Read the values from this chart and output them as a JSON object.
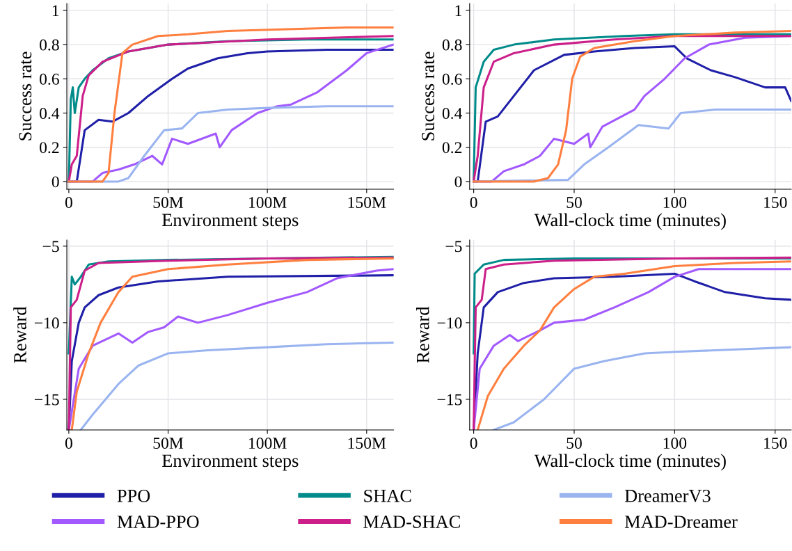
{
  "chart_data": [
    {
      "type": "line",
      "ylabel": "Success rate",
      "xlabel": "Environment steps",
      "xlim": [
        -1,
        163.6
      ],
      "ylim": [
        -0.045,
        1.04
      ],
      "xticks": [
        0,
        {
          "value": 50,
          "label": "50M"
        },
        {
          "value": 100,
          "label": "100M"
        },
        {
          "value": 150,
          "label": "150M"
        }
      ],
      "yticks": [
        0,
        0.2,
        0.4,
        0.6,
        0.8,
        1
      ],
      "grid": true,
      "legend": "bottom",
      "series": [
        {
          "name": "PPO",
          "color": "#1f1fa8",
          "x": [
            0,
            4,
            8,
            15,
            22,
            30,
            40,
            52,
            60,
            75,
            90,
            100,
            130,
            163.6
          ],
          "values": [
            0,
            0,
            0.3,
            0.36,
            0.35,
            0.4,
            0.5,
            0.6,
            0.66,
            0.72,
            0.75,
            0.76,
            0.77,
            0.77
          ]
        },
        {
          "name": "MAD-PPO",
          "color": "#a259ff",
          "x": [
            0,
            12,
            17,
            25,
            33,
            42,
            47,
            52,
            60,
            74,
            76,
            82,
            95,
            105,
            112,
            125,
            140,
            150,
            163.6
          ],
          "values": [
            0,
            0,
            0.05,
            0.07,
            0.1,
            0.15,
            0.1,
            0.25,
            0.22,
            0.28,
            0.2,
            0.3,
            0.4,
            0.44,
            0.45,
            0.52,
            0.65,
            0.75,
            0.8
          ]
        },
        {
          "name": "SHAC",
          "color": "#008b8b",
          "x": [
            0,
            1,
            2,
            3,
            5,
            8,
            12,
            20,
            30,
            50,
            80,
            120,
            163.6
          ],
          "values": [
            0,
            0.48,
            0.55,
            0.4,
            0.55,
            0.6,
            0.65,
            0.72,
            0.76,
            0.8,
            0.82,
            0.83,
            0.83
          ]
        },
        {
          "name": "MAD-SHAC",
          "color": "#cc1f8a",
          "x": [
            0,
            1.5,
            4,
            7,
            10,
            17,
            30,
            50,
            100,
            163.6
          ],
          "values": [
            0,
            0.1,
            0.15,
            0.5,
            0.62,
            0.7,
            0.76,
            0.8,
            0.83,
            0.85
          ]
        },
        {
          "name": "DreamerV3",
          "color": "#9ab4f0",
          "x": [
            0,
            25,
            30,
            38,
            48,
            57,
            65,
            80,
            100,
            130,
            163.6
          ],
          "values": [
            0,
            0,
            0.02,
            0.15,
            0.3,
            0.31,
            0.4,
            0.42,
            0.43,
            0.44,
            0.44
          ]
        },
        {
          "name": "MAD-Dreamer",
          "color": "#ff7f3f",
          "x": [
            0,
            17,
            20,
            23,
            27,
            32,
            45,
            60,
            80,
            110,
            140,
            163.6
          ],
          "values": [
            0,
            0,
            0.05,
            0.4,
            0.75,
            0.8,
            0.85,
            0.86,
            0.88,
            0.89,
            0.9,
            0.9
          ]
        }
      ]
    },
    {
      "type": "line",
      "ylabel": "Success rate",
      "xlabel": "Wall-clock time (minutes)",
      "xlim": [
        -2,
        158
      ],
      "ylim": [
        -0.045,
        1.04
      ],
      "xticks": [
        0,
        50,
        100,
        150
      ],
      "yticks": [
        0,
        0.2,
        0.4,
        0.6,
        0.8,
        1
      ],
      "grid": true,
      "series": [
        {
          "color": "#1f1fa8",
          "x": [
            0,
            2,
            6,
            12,
            20,
            30,
            45,
            60,
            80,
            100,
            106,
            118,
            130,
            145,
            155,
            158
          ],
          "values": [
            0,
            0,
            0.35,
            0.38,
            0.5,
            0.65,
            0.74,
            0.76,
            0.78,
            0.79,
            0.72,
            0.65,
            0.61,
            0.55,
            0.55,
            0.47
          ]
        },
        {
          "color": "#a259ff",
          "x": [
            0,
            9,
            15,
            25,
            33,
            40,
            50,
            57,
            58,
            64,
            80,
            85,
            95,
            105,
            117,
            135,
            158
          ],
          "values": [
            0,
            0,
            0.06,
            0.1,
            0.15,
            0.25,
            0.22,
            0.28,
            0.2,
            0.32,
            0.42,
            0.5,
            0.6,
            0.72,
            0.8,
            0.84,
            0.85
          ]
        },
        {
          "color": "#008b8b",
          "x": [
            0,
            1,
            5,
            10,
            20,
            40,
            75,
            100,
            158
          ],
          "values": [
            0,
            0.55,
            0.7,
            0.77,
            0.8,
            0.83,
            0.85,
            0.86,
            0.86
          ]
        },
        {
          "color": "#cc1f8a",
          "x": [
            0,
            2,
            5,
            10,
            20,
            40,
            70,
            100,
            158
          ],
          "values": [
            0,
            0.15,
            0.55,
            0.7,
            0.75,
            0.8,
            0.83,
            0.85,
            0.85
          ]
        },
        {
          "color": "#9ab4f0",
          "x": [
            0,
            47,
            55,
            67,
            82,
            97,
            103,
            120,
            158
          ],
          "values": [
            0,
            0.01,
            0.1,
            0.2,
            0.33,
            0.31,
            0.4,
            0.42,
            0.42
          ]
        },
        {
          "color": "#ff7f3f",
          "x": [
            0,
            30,
            37,
            42,
            46,
            49,
            53,
            60,
            80,
            100,
            130,
            158
          ],
          "values": [
            0,
            0,
            0.02,
            0.1,
            0.3,
            0.6,
            0.73,
            0.78,
            0.82,
            0.85,
            0.87,
            0.88
          ]
        }
      ]
    },
    {
      "type": "line",
      "ylabel": "Reward",
      "xlabel": "Environment steps",
      "xlim": [
        -1,
        163.6
      ],
      "ylim": [
        -17,
        -4.6
      ],
      "xticks": [
        0,
        {
          "value": 50,
          "label": "50M"
        },
        {
          "value": 100,
          "label": "100M"
        },
        {
          "value": 150,
          "label": "150M"
        }
      ],
      "yticks": [
        {
          "value": -5,
          "label": "−5"
        },
        {
          "value": -10,
          "label": "−10"
        },
        {
          "value": -15,
          "label": "−15"
        }
      ],
      "grid": true,
      "series": [
        {
          "color": "#1f1fa8",
          "x": [
            0,
            1.5,
            5,
            8,
            15,
            25,
            45,
            80,
            163.6
          ],
          "values": [
            -17,
            -12.5,
            -10,
            -9,
            -8.2,
            -7.7,
            -7.3,
            -7,
            -6.9
          ]
        },
        {
          "color": "#a259ff",
          "x": [
            0,
            5,
            12,
            25,
            32,
            40,
            48,
            55,
            65,
            80,
            100,
            120,
            135,
            155,
            163.6
          ],
          "values": [
            -17,
            -13,
            -11.5,
            -10.7,
            -11.3,
            -10.6,
            -10.3,
            -9.6,
            -10,
            -9.5,
            -8.7,
            -8,
            -7.1,
            -6.6,
            -6.5
          ]
        },
        {
          "color": "#008b8b",
          "x": [
            0,
            1.5,
            3,
            6,
            10,
            20,
            50,
            100,
            163.6
          ],
          "values": [
            -12,
            -7,
            -7.5,
            -7,
            -6.2,
            -6,
            -5.9,
            -5.8,
            -5.7
          ]
        },
        {
          "color": "#cc1f8a",
          "x": [
            0,
            1,
            4,
            8,
            15,
            50,
            100,
            163.6
          ],
          "values": [
            -17,
            -9,
            -8.5,
            -6.6,
            -6.1,
            -5.95,
            -5.8,
            -5.75
          ]
        },
        {
          "color": "#9ab4f0",
          "x": [
            6,
            12,
            25,
            35,
            50,
            70,
            100,
            130,
            163.6
          ],
          "values": [
            -17,
            -16,
            -14,
            -12.8,
            -12,
            -11.8,
            -11.6,
            -11.4,
            -11.3
          ]
        },
        {
          "color": "#ff7f3f",
          "x": [
            1.5,
            4,
            10,
            16,
            25,
            32,
            50,
            80,
            120,
            163.6
          ],
          "values": [
            -17,
            -14.5,
            -12,
            -10,
            -8,
            -7,
            -6.5,
            -6.2,
            -5.9,
            -5.8
          ]
        }
      ]
    },
    {
      "type": "line",
      "ylabel": "Reward",
      "xlabel": "Wall-clock time (minutes)",
      "xlim": [
        -2,
        158
      ],
      "ylim": [
        -17,
        -4.6
      ],
      "xticks": [
        0,
        50,
        100,
        150
      ],
      "yticks": [
        {
          "value": -5,
          "label": "−5"
        },
        {
          "value": -10,
          "label": "−10"
        },
        {
          "value": -15,
          "label": "−15"
        }
      ],
      "grid": true,
      "series": [
        {
          "color": "#1f1fa8",
          "x": [
            0,
            2,
            5,
            12,
            25,
            40,
            70,
            100,
            110,
            125,
            145,
            158
          ],
          "values": [
            -17,
            -12,
            -9,
            -8,
            -7.4,
            -7.1,
            -7,
            -6.8,
            -7.3,
            -8,
            -8.4,
            -8.5
          ]
        },
        {
          "color": "#a259ff",
          "x": [
            0,
            3,
            10,
            18,
            22,
            33,
            40,
            55,
            70,
            87,
            100,
            112,
            158
          ],
          "values": [
            -17,
            -13,
            -11.5,
            -10.8,
            -11.2,
            -10.5,
            -10,
            -9.8,
            -9,
            -8,
            -7,
            -6.5,
            -6.5
          ]
        },
        {
          "color": "#008b8b",
          "x": [
            0,
            0.5,
            5,
            15,
            50,
            158
          ],
          "values": [
            -12,
            -6.8,
            -6.2,
            -5.9,
            -5.8,
            -5.8
          ]
        },
        {
          "color": "#cc1f8a",
          "x": [
            0,
            1,
            4,
            6,
            15,
            40,
            100,
            158
          ],
          "values": [
            -17,
            -9,
            -8.5,
            -6.5,
            -6.2,
            -5.95,
            -5.8,
            -5.75
          ]
        },
        {
          "color": "#9ab4f0",
          "x": [
            10,
            20,
            35,
            50,
            65,
            85,
            100,
            120,
            158
          ],
          "values": [
            -17,
            -16.5,
            -15,
            -13,
            -12.5,
            -12,
            -11.9,
            -11.8,
            -11.6
          ]
        },
        {
          "color": "#ff7f3f",
          "x": [
            2,
            7,
            15,
            25,
            33,
            40,
            50,
            60,
            75,
            100,
            130,
            158
          ],
          "values": [
            -17,
            -14.8,
            -13,
            -11.5,
            -10.5,
            -9,
            -7.8,
            -7,
            -6.8,
            -6.3,
            -6.1,
            -6
          ]
        }
      ]
    }
  ]
}
